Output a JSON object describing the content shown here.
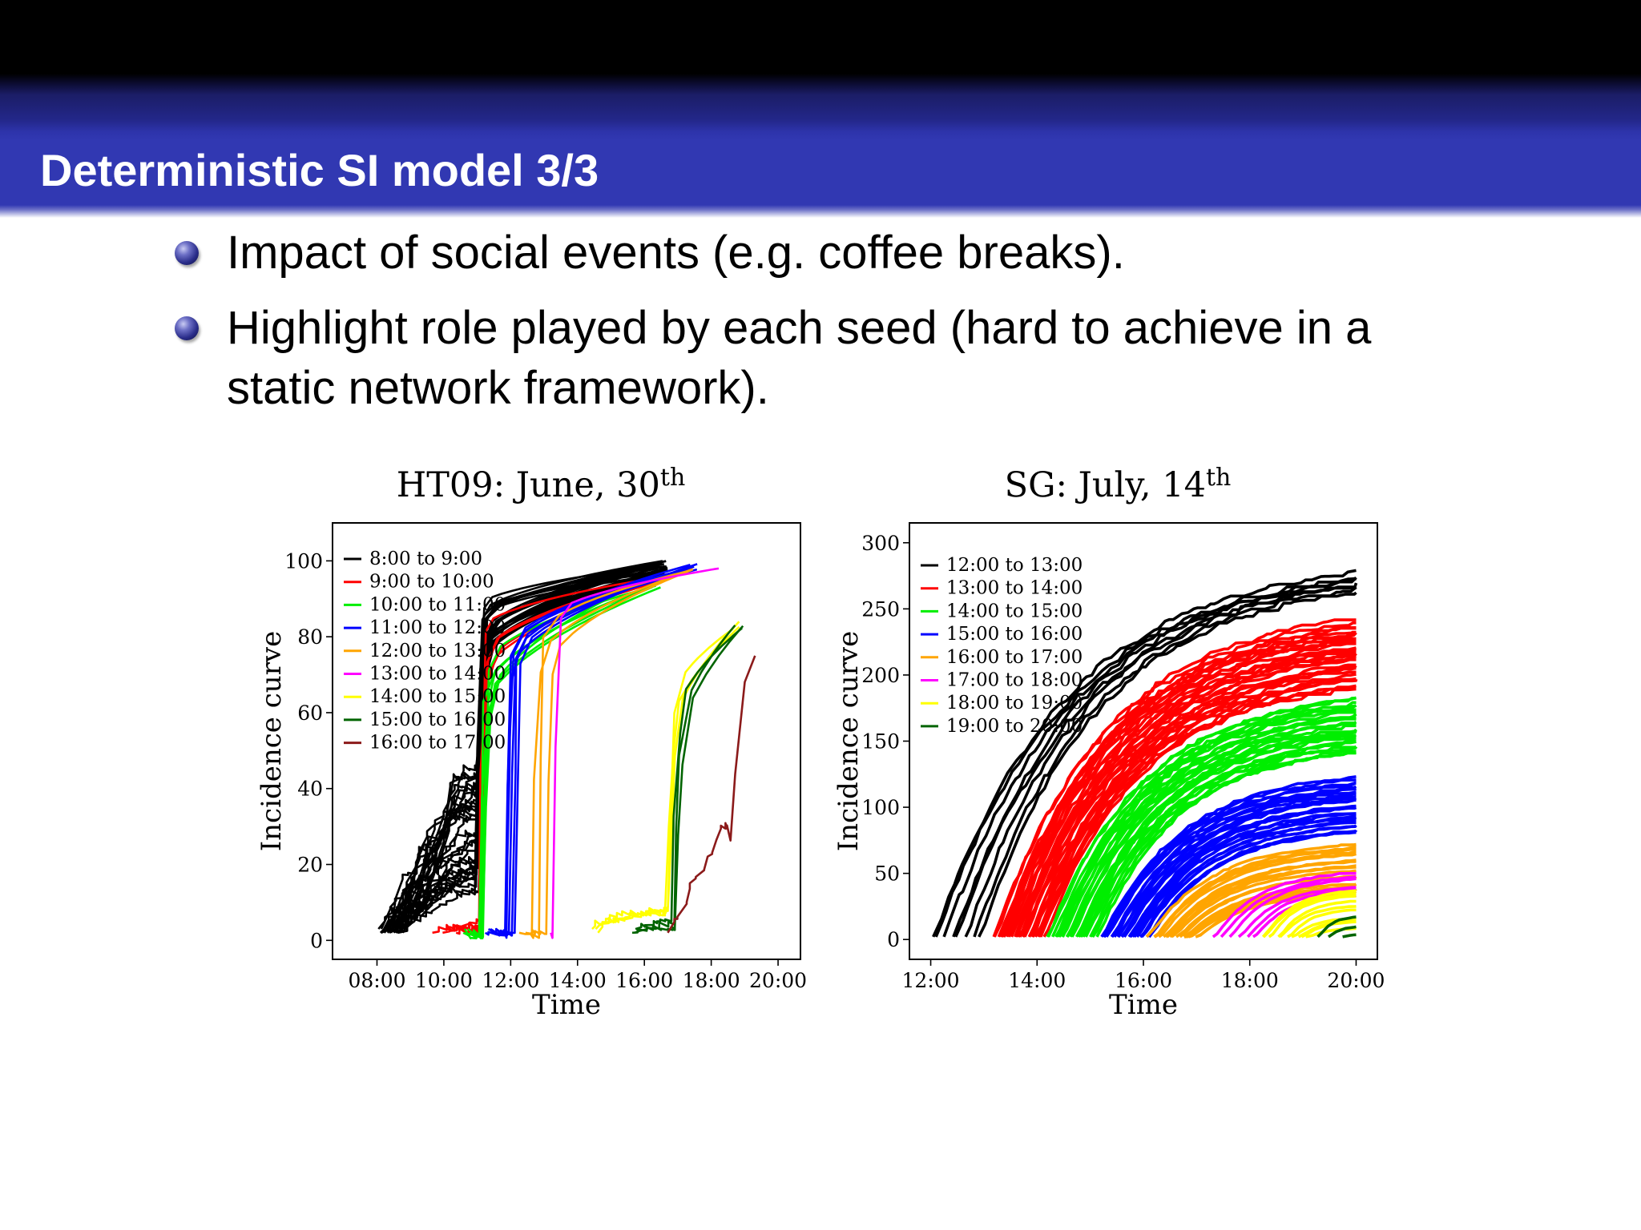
{
  "slide": {
    "title": "Deterministic SI model 3/3",
    "bullets": [
      {
        "lines": [
          "Impact of social events (e.g. coffee breaks)."
        ]
      },
      {
        "lines": [
          "Highlight role played by each seed (hard to achieve in a",
          "static network framework)."
        ]
      }
    ]
  },
  "colors": {
    "header": "#3138b2",
    "bullet": "#2a2d8a"
  },
  "chart_data": [
    {
      "type": "line",
      "title": "HT09: June, 30",
      "title_superscript": "th",
      "xlabel": "Time",
      "ylabel": "Incidence curve",
      "x_unit": "hours",
      "xlim": [
        6.67,
        20.67
      ],
      "ylim": [
        -5,
        110
      ],
      "xticks": [
        8,
        10,
        12,
        14,
        16,
        18,
        20
      ],
      "xtick_labels": [
        "08:00",
        "10:00",
        "12:00",
        "14:00",
        "16:00",
        "18:00",
        "20:00"
      ],
      "yticks": [
        0,
        20,
        40,
        60,
        80,
        100
      ],
      "ytick_labels": [
        "0",
        "20",
        "40",
        "60",
        "80",
        "100"
      ],
      "legend_position": "upper-left",
      "grid": false,
      "series": [
        {
          "name": "8:00 to 9:00",
          "color": "#000000",
          "count": 32,
          "start": 8.0,
          "start_spread": 0.9,
          "jump": 11.0,
          "rise": 0.15,
          "early_max": 45,
          "plateau": 88,
          "final": 100,
          "end": 16.7,
          "final_spread": 4
        },
        {
          "name": "9:00 to 10:00",
          "color": "#ff0000",
          "count": 5,
          "start": 9.5,
          "start_spread": 0.9,
          "jump": 11.05,
          "rise": 0.15,
          "early_max": 5,
          "plateau": 82,
          "final": 98,
          "end": 16.7,
          "final_spread": 3
        },
        {
          "name": "10:00 to 11:00",
          "color": "#00ee00",
          "count": 6,
          "start": 10.4,
          "start_spread": 0.5,
          "jump": 11.1,
          "rise": 0.2,
          "early_max": 2,
          "plateau": 72,
          "final": 96,
          "end": 16.5,
          "final_spread": 3
        },
        {
          "name": "11:00 to 12:00",
          "color": "#0000ff",
          "count": 7,
          "start": 11.2,
          "start_spread": 0.8,
          "jump": 12.0,
          "rise": 0.5,
          "early_max": 2,
          "plateau": 82,
          "final": 100,
          "end": 17.6,
          "final_spread": 3
        },
        {
          "name": "12:00 to 13:00",
          "color": "#ffa500",
          "count": 3,
          "start": 12.2,
          "start_spread": 0.6,
          "jump": 12.8,
          "rise": 0.6,
          "early_max": 2,
          "plateau": 85,
          "final": 99,
          "end": 17.5,
          "final_spread": 2
        },
        {
          "name": "13:00 to 14:00",
          "color": "#ff00ff",
          "count": 1,
          "start": 13.2,
          "start_spread": 0,
          "jump": 13.4,
          "rise": 1.2,
          "early_max": 1,
          "plateau": 88,
          "final": 98,
          "end": 18.3,
          "final_spread": 0
        },
        {
          "name": "14:00 to 15:00",
          "color": "#ffff00",
          "count": 3,
          "start": 14.4,
          "start_spread": 0.8,
          "jump": 16.7,
          "rise": 0.5,
          "early_max": 12,
          "plateau": 60,
          "final": 84,
          "end": 18.9,
          "final_spread": 2
        },
        {
          "name": "15:00 to 16:00",
          "color": "#006400",
          "count": 3,
          "start": 15.5,
          "start_spread": 0.7,
          "jump": 16.8,
          "rise": 0.4,
          "early_max": 6,
          "plateau": 55,
          "final": 84,
          "end": 19.0,
          "final_spread": 2
        },
        {
          "name": "16:00 to 17:00",
          "color": "#8b1a1a",
          "count": 1,
          "start": 16.7,
          "start_spread": 0,
          "jump": 17.9,
          "rise": 1.2,
          "early_max": 30,
          "plateau": 45,
          "final": 75,
          "end": 19.6,
          "final_spread": 0
        }
      ]
    },
    {
      "type": "line",
      "title": "SG: July, 14",
      "title_superscript": "th",
      "xlabel": "Time",
      "ylabel": "Incidence curve",
      "x_unit": "hours",
      "xlim": [
        11.6,
        20.4
      ],
      "ylim": [
        -15,
        315
      ],
      "xticks": [
        12,
        14,
        16,
        18,
        20
      ],
      "xtick_labels": [
        "12:00",
        "14:00",
        "16:00",
        "18:00",
        "20:00"
      ],
      "yticks": [
        0,
        50,
        100,
        150,
        200,
        250,
        300
      ],
      "ytick_labels": [
        "0",
        "50",
        "100",
        "150",
        "200",
        "250",
        "300"
      ],
      "legend_position": "upper-left",
      "grid": false,
      "series": [
        {
          "name": "12:00 to 13:00",
          "color": "#000000",
          "count": 8,
          "start": 12.0,
          "start_spread": 0.9,
          "end": 20.0,
          "final": 275,
          "final_spread": 12
        },
        {
          "name": "13:00 to 14:00",
          "color": "#ff0000",
          "count": 30,
          "start": 13.2,
          "start_spread": 0.9,
          "end": 20.0,
          "final": 240,
          "final_spread": 50
        },
        {
          "name": "14:00 to 15:00",
          "color": "#00ee00",
          "count": 26,
          "start": 14.2,
          "start_spread": 0.9,
          "end": 20.0,
          "final": 182,
          "final_spread": 42
        },
        {
          "name": "15:00 to 16:00",
          "color": "#0000ff",
          "count": 26,
          "start": 15.2,
          "start_spread": 0.9,
          "end": 20.0,
          "final": 122,
          "final_spread": 42
        },
        {
          "name": "16:00 to 17:00",
          "color": "#ffa500",
          "count": 18,
          "start": 16.1,
          "start_spread": 0.9,
          "end": 20.0,
          "final": 72,
          "final_spread": 40
        },
        {
          "name": "17:00 to 18:00",
          "color": "#ff00ff",
          "count": 6,
          "start": 17.3,
          "start_spread": 0.8,
          "end": 20.0,
          "final": 52,
          "final_spread": 18
        },
        {
          "name": "18:00 to 19:00",
          "color": "#ffff00",
          "count": 10,
          "start": 18.2,
          "start_spread": 0.9,
          "end": 20.0,
          "final": 38,
          "final_spread": 30
        },
        {
          "name": "19:00 to 20:00",
          "color": "#006400",
          "count": 3,
          "start": 19.3,
          "start_spread": 0.4,
          "end": 20.0,
          "final": 18,
          "final_spread": 14
        }
      ]
    }
  ]
}
